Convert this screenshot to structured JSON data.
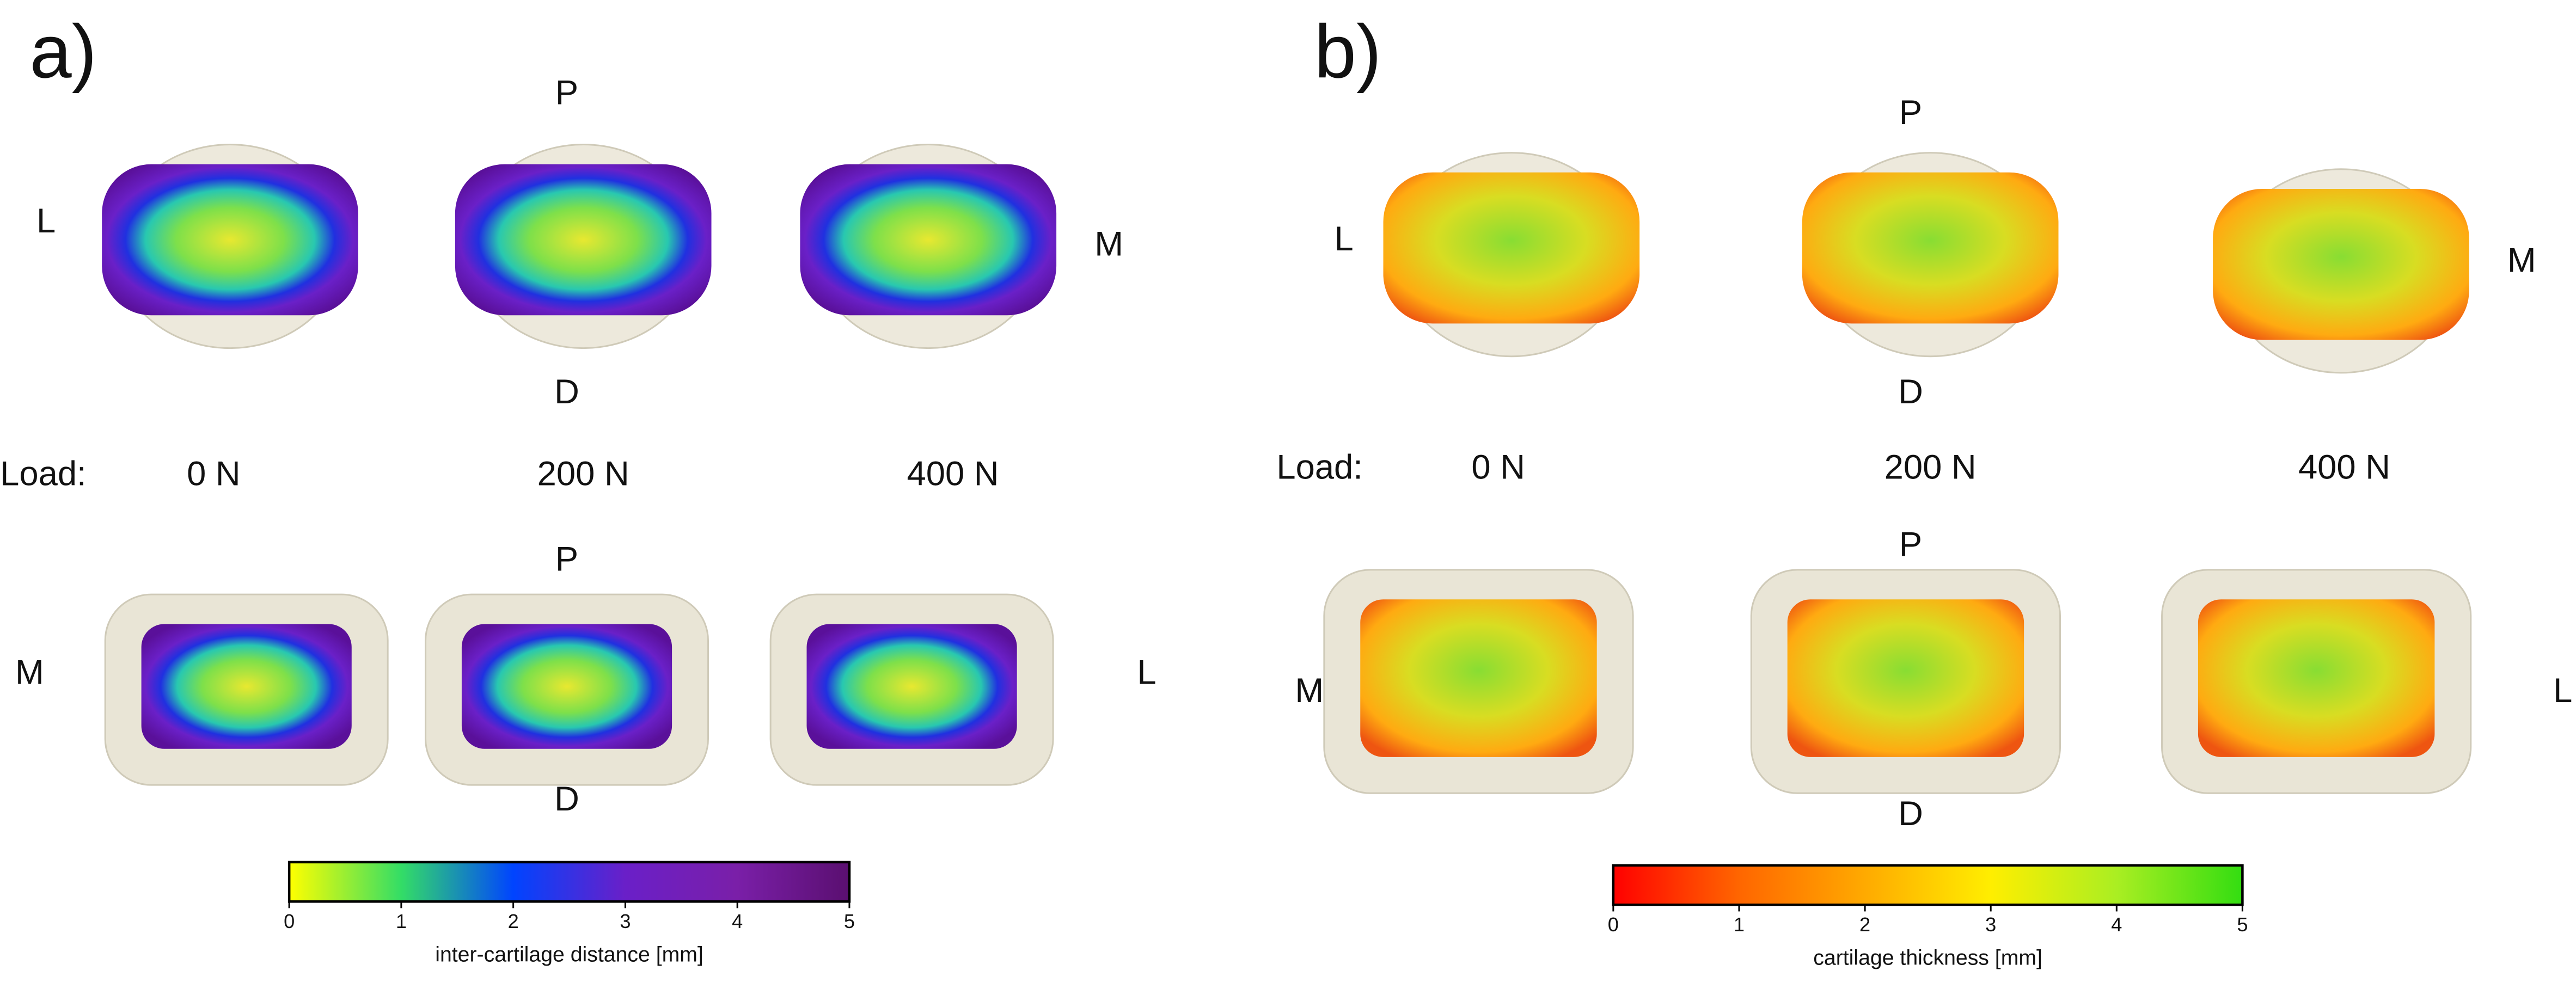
{
  "panels": [
    {
      "label": "a)",
      "top_view": {
        "top": "P",
        "bottom": "D",
        "left": "L",
        "right": "M"
      },
      "load_label": "Load:",
      "loads": [
        "0 N",
        "200 N",
        "400 N"
      ],
      "bottom_view": {
        "top": "P",
        "bottom": "D",
        "left": "M",
        "right": "L"
      },
      "colorbar": {
        "range": [
          0,
          5
        ],
        "ticks": [
          0,
          1,
          2,
          3,
          4,
          5
        ],
        "label": "inter-cartilage distance [mm]",
        "colors": [
          "#ffff00",
          "#33dd66",
          "#0044ff",
          "#6a1fc8",
          "#7a1fa8",
          "#5a0f70"
        ]
      }
    },
    {
      "label": "b)",
      "top_view": {
        "top": "P",
        "bottom": "D",
        "left": "L",
        "right": "M"
      },
      "load_label": "Load:",
      "loads": [
        "0 N",
        "200 N",
        "400 N"
      ],
      "bottom_view": {
        "top": "P",
        "bottom": "D",
        "left": "M",
        "right": "L"
      },
      "colorbar": {
        "range": [
          0,
          5
        ],
        "ticks": [
          0,
          1,
          2,
          3,
          4,
          5
        ],
        "label": "cartilage thickness [mm]",
        "colors": [
          "#ff0000",
          "#ff6600",
          "#ffaa00",
          "#ffee00",
          "#aaee22",
          "#33dd11"
        ]
      }
    }
  ]
}
